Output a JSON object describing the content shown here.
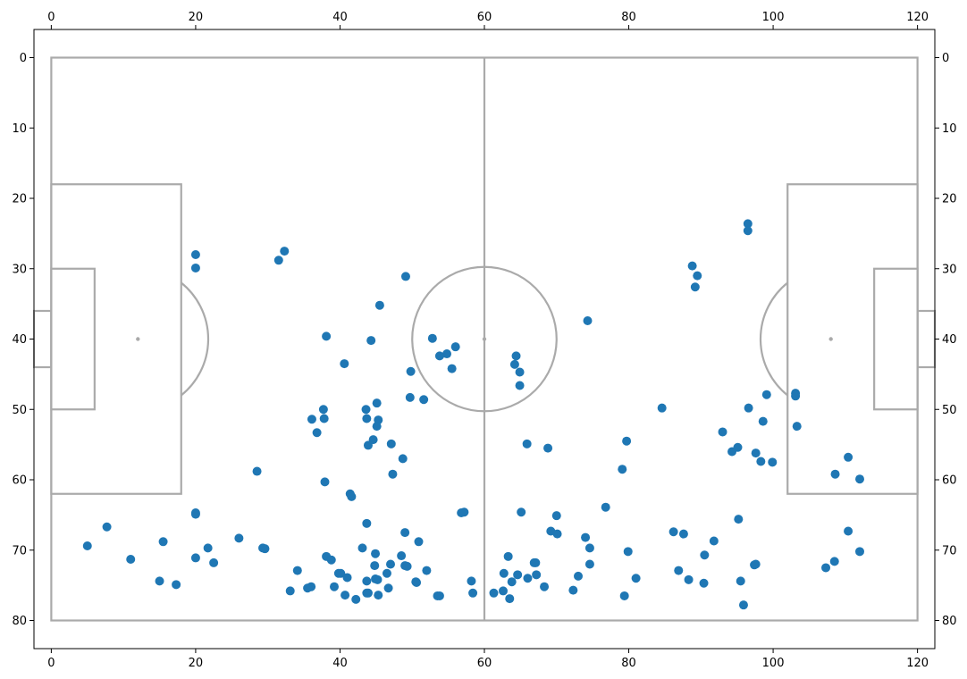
{
  "chart_data": {
    "type": "scatter",
    "title": "",
    "xlabel": "",
    "ylabel": "",
    "xlim": [
      -2.4,
      122.4
    ],
    "ylim": [
      84,
      -4
    ],
    "y_inverted": true,
    "grid": false,
    "legend": "none",
    "ticks_top": true,
    "ticks_right": true,
    "xticks": [
      0,
      20,
      40,
      60,
      80,
      100,
      120
    ],
    "yticks": [
      0,
      10,
      20,
      30,
      40,
      50,
      60,
      70,
      80
    ],
    "pitch": {
      "length": 120,
      "width": 80,
      "line_color": "#aaaaaa",
      "centre_circle_radius": 10,
      "penalty_area_depth": 18,
      "penalty_area_y": [
        18,
        62
      ],
      "six_yard_depth": 6,
      "six_yard_y": [
        30,
        50
      ],
      "goal_depth": 2.4,
      "goal_y": [
        36,
        44
      ],
      "penalty_spot_distance": 12,
      "arc_radius": 10
    },
    "series": [
      {
        "color": "#1f77b4",
        "points": [
          [
            96.5,
            23.6
          ],
          [
            96.5,
            24.6
          ],
          [
            88.8,
            29.6
          ],
          [
            89.5,
            31.0
          ],
          [
            89.2,
            32.6
          ],
          [
            74.3,
            37.4
          ],
          [
            20.0,
            28.0
          ],
          [
            20.0,
            29.9
          ],
          [
            32.3,
            27.5
          ],
          [
            31.5,
            28.8
          ],
          [
            49.1,
            31.1
          ],
          [
            45.5,
            35.2
          ],
          [
            38.1,
            39.6
          ],
          [
            44.3,
            40.2
          ],
          [
            52.8,
            39.9
          ],
          [
            56.0,
            41.1
          ],
          [
            54.8,
            42.1
          ],
          [
            53.8,
            42.4
          ],
          [
            64.4,
            42.4
          ],
          [
            64.2,
            43.6
          ],
          [
            64.9,
            44.7
          ],
          [
            40.6,
            43.5
          ],
          [
            55.5,
            44.2
          ],
          [
            49.8,
            44.6
          ],
          [
            64.9,
            46.6
          ],
          [
            103.1,
            47.7
          ],
          [
            103.1,
            48.1
          ],
          [
            99.1,
            47.9
          ],
          [
            49.7,
            48.3
          ],
          [
            51.6,
            48.6
          ],
          [
            45.1,
            49.1
          ],
          [
            84.6,
            49.8
          ],
          [
            96.6,
            49.8
          ],
          [
            37.7,
            50.0
          ],
          [
            43.6,
            50.0
          ],
          [
            36.1,
            51.4
          ],
          [
            37.8,
            51.3
          ],
          [
            43.7,
            51.3
          ],
          [
            45.3,
            51.5
          ],
          [
            98.6,
            51.7
          ],
          [
            45.1,
            52.4
          ],
          [
            103.3,
            52.4
          ],
          [
            36.8,
            53.3
          ],
          [
            93.0,
            53.2
          ],
          [
            44.6,
            54.3
          ],
          [
            79.7,
            54.5
          ],
          [
            47.1,
            54.9
          ],
          [
            43.9,
            55.1
          ],
          [
            65.9,
            54.9
          ],
          [
            68.8,
            55.5
          ],
          [
            95.1,
            55.4
          ],
          [
            94.3,
            56.0
          ],
          [
            97.6,
            56.2
          ],
          [
            48.7,
            57.0
          ],
          [
            98.3,
            57.4
          ],
          [
            99.9,
            57.5
          ],
          [
            110.4,
            56.8
          ],
          [
            79.1,
            58.5
          ],
          [
            28.5,
            58.8
          ],
          [
            47.3,
            59.2
          ],
          [
            108.6,
            59.2
          ],
          [
            112.0,
            59.9
          ],
          [
            37.9,
            60.3
          ],
          [
            41.4,
            62.0
          ],
          [
            41.6,
            62.4
          ],
          [
            76.8,
            63.9
          ],
          [
            20.0,
            64.7
          ],
          [
            20.0,
            64.9
          ],
          [
            56.8,
            64.7
          ],
          [
            57.2,
            64.6
          ],
          [
            65.1,
            64.6
          ],
          [
            70.0,
            65.1
          ],
          [
            95.2,
            65.6
          ],
          [
            43.7,
            66.2
          ],
          [
            7.7,
            66.7
          ],
          [
            69.2,
            67.3
          ],
          [
            70.1,
            67.7
          ],
          [
            86.2,
            67.4
          ],
          [
            87.6,
            67.7
          ],
          [
            110.4,
            67.3
          ],
          [
            49.0,
            67.5
          ],
          [
            26.0,
            68.3
          ],
          [
            74.0,
            68.2
          ],
          [
            91.8,
            68.7
          ],
          [
            15.5,
            68.8
          ],
          [
            50.9,
            68.8
          ],
          [
            5.0,
            69.4
          ],
          [
            29.6,
            69.8
          ],
          [
            29.3,
            69.7
          ],
          [
            21.7,
            69.7
          ],
          [
            43.1,
            69.7
          ],
          [
            74.6,
            69.7
          ],
          [
            79.9,
            70.2
          ],
          [
            112.0,
            70.2
          ],
          [
            90.5,
            70.7
          ],
          [
            48.5,
            70.8
          ],
          [
            44.9,
            70.5
          ],
          [
            38.1,
            70.9
          ],
          [
            63.3,
            70.9
          ],
          [
            38.8,
            71.4
          ],
          [
            11.0,
            71.3
          ],
          [
            20.0,
            71.1
          ],
          [
            108.5,
            71.6
          ],
          [
            22.5,
            71.8
          ],
          [
            67.1,
            71.8
          ],
          [
            66.9,
            71.8
          ],
          [
            47.0,
            72.0
          ],
          [
            49.0,
            72.2
          ],
          [
            49.3,
            72.3
          ],
          [
            44.8,
            72.2
          ],
          [
            74.6,
            72.0
          ],
          [
            97.4,
            72.1
          ],
          [
            97.6,
            72.0
          ],
          [
            107.3,
            72.5
          ],
          [
            34.1,
            72.9
          ],
          [
            52.0,
            72.9
          ],
          [
            86.9,
            72.9
          ],
          [
            39.8,
            73.3
          ],
          [
            40.1,
            73.3
          ],
          [
            46.5,
            73.3
          ],
          [
            62.7,
            73.3
          ],
          [
            64.6,
            73.5
          ],
          [
            67.2,
            73.5
          ],
          [
            73.0,
            73.7
          ],
          [
            41.0,
            73.9
          ],
          [
            66.0,
            74.0
          ],
          [
            81.0,
            74.0
          ],
          [
            43.7,
            74.4
          ],
          [
            45.2,
            74.2
          ],
          [
            44.9,
            74.1
          ],
          [
            15.0,
            74.4
          ],
          [
            50.5,
            74.5
          ],
          [
            50.6,
            74.6
          ],
          [
            58.2,
            74.4
          ],
          [
            63.8,
            74.5
          ],
          [
            88.3,
            74.2
          ],
          [
            95.5,
            74.4
          ],
          [
            17.3,
            74.9
          ],
          [
            39.2,
            75.2
          ],
          [
            36.0,
            75.2
          ],
          [
            35.5,
            75.4
          ],
          [
            46.7,
            75.4
          ],
          [
            68.3,
            75.2
          ],
          [
            90.4,
            74.7
          ],
          [
            33.1,
            75.8
          ],
          [
            43.9,
            76.1
          ],
          [
            43.7,
            76.1
          ],
          [
            62.6,
            75.8
          ],
          [
            61.3,
            76.1
          ],
          [
            72.3,
            75.7
          ],
          [
            58.4,
            76.1
          ],
          [
            40.7,
            76.4
          ],
          [
            45.3,
            76.4
          ],
          [
            53.5,
            76.5
          ],
          [
            53.8,
            76.5
          ],
          [
            79.4,
            76.5
          ],
          [
            42.2,
            77.0
          ],
          [
            63.5,
            76.9
          ],
          [
            95.9,
            77.8
          ]
        ]
      }
    ]
  }
}
